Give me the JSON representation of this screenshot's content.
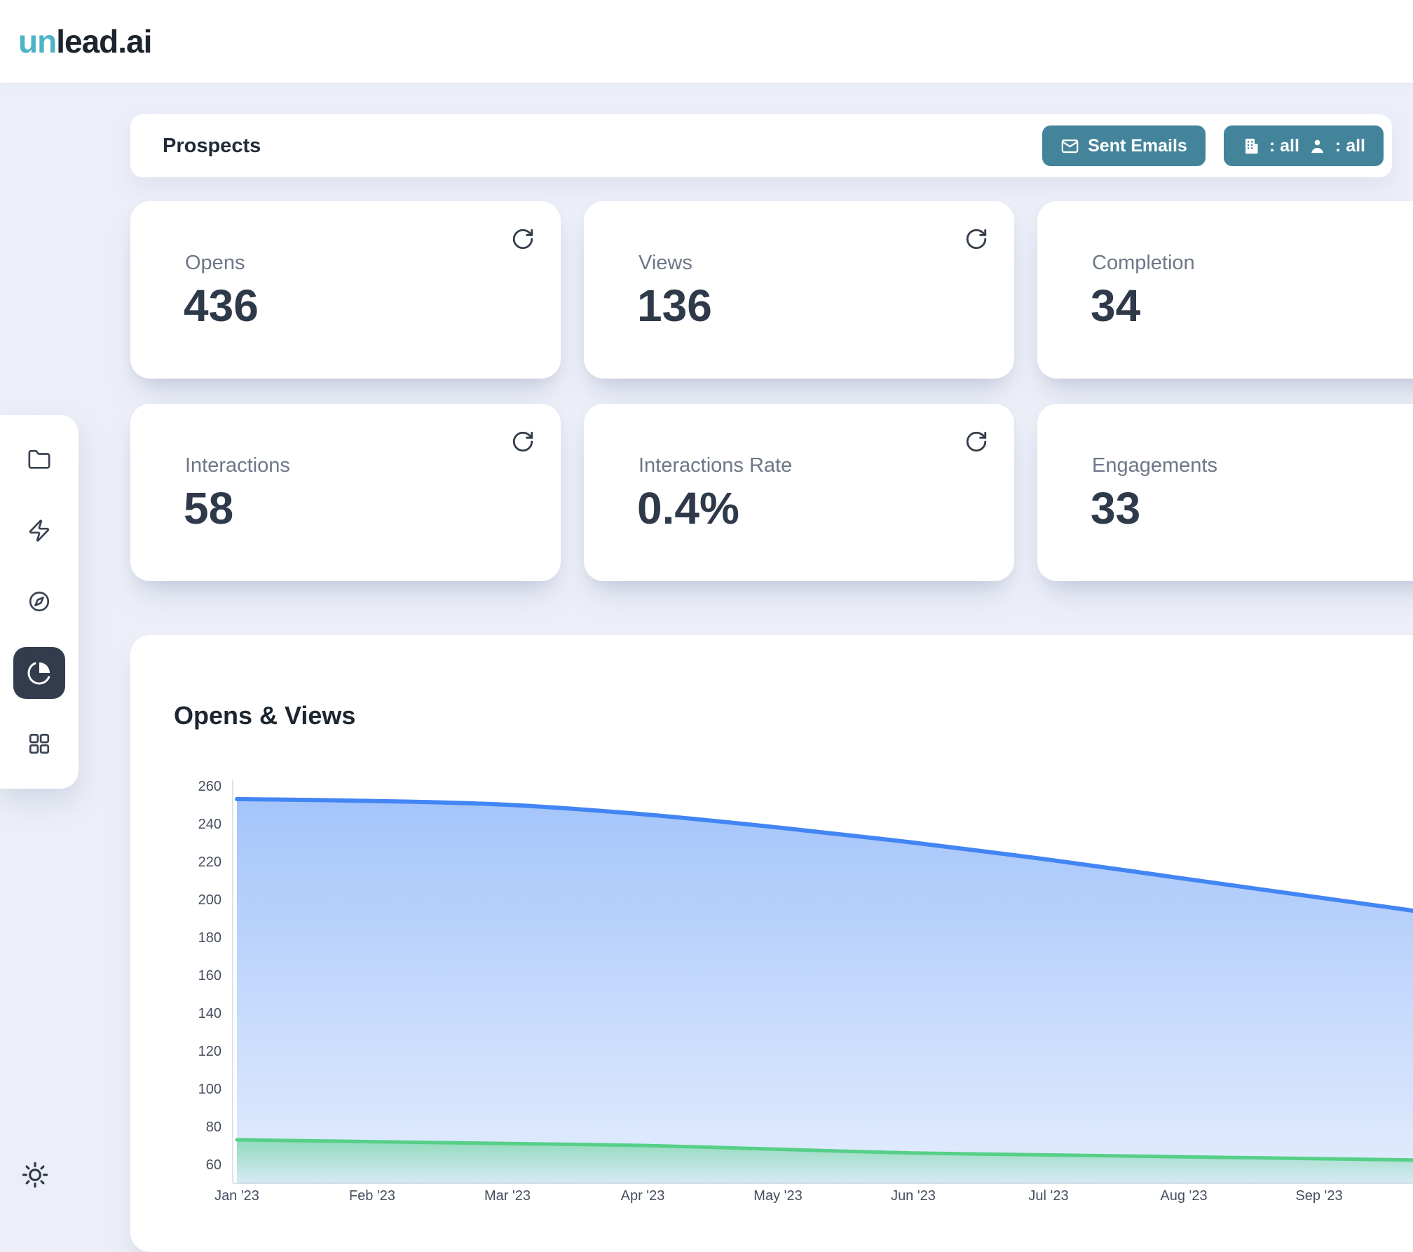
{
  "brand": {
    "accent": "un",
    "rest": "lead.ai"
  },
  "toolbar": {
    "title": "Prospects",
    "sent_emails_label": "Sent Emails",
    "company_filter": ": all",
    "person_filter": ": all"
  },
  "stats": [
    {
      "label": "Opens",
      "value": "436"
    },
    {
      "label": "Views",
      "value": "136"
    },
    {
      "label": "Completion",
      "value": "34"
    },
    {
      "label": "Interactions",
      "value": "58"
    },
    {
      "label": "Interactions Rate",
      "value": "0.4%"
    },
    {
      "label": "Engagements",
      "value": "33"
    }
  ],
  "sidebar": {
    "items": [
      "folder",
      "lightning",
      "compass",
      "pie-chart",
      "grid"
    ],
    "active": "pie-chart"
  },
  "colors": {
    "background": "#eceff8",
    "teal": "#44849b",
    "logo_accent": "#4db3c6",
    "active_item_bg": "#323c4d",
    "opens_line": "#4285f4",
    "views_line": "#56cf87"
  },
  "chart_data": {
    "type": "area",
    "title": "Opens & Views",
    "x": [
      "Jan '23",
      "Feb '23",
      "Mar '23",
      "Apr '23",
      "May '23",
      "Jun '23",
      "Jul '23",
      "Aug '23",
      "Sep '23"
    ],
    "series": [
      {
        "name": "Opens",
        "color": "#4285f4",
        "values": [
          253,
          252,
          250,
          245,
          238,
          230,
          221,
          211,
          201
        ]
      },
      {
        "name": "Views",
        "color": "#56cf87",
        "values": [
          73,
          72,
          71,
          70,
          68,
          66,
          65,
          64,
          63
        ]
      }
    ],
    "ylim": [
      50,
      260
    ],
    "yticks": [
      60,
      80,
      100,
      120,
      140,
      160,
      180,
      200,
      220,
      240,
      260
    ],
    "grid": false,
    "legend": "none"
  }
}
